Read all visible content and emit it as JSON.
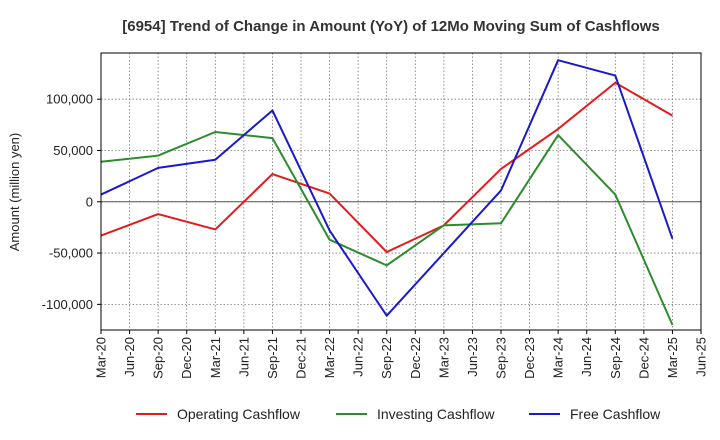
{
  "chart_data": {
    "type": "line",
    "title": "[6954]  Trend of Change in Amount (YoY) of 12Mo Moving Sum of Cashflows",
    "xlabel": "",
    "ylabel": "Amount (million yen)",
    "ylim": [
      -125000,
      145000
    ],
    "yticks": [
      -100000,
      -50000,
      0,
      50000,
      100000
    ],
    "ytick_labels": [
      "-100,000",
      "-50,000",
      "0",
      "50,000",
      "100,000"
    ],
    "categories": [
      "Mar-20",
      "Jun-20",
      "Sep-20",
      "Dec-20",
      "Mar-21",
      "Jun-21",
      "Sep-21",
      "Dec-21",
      "Mar-22",
      "Jun-22",
      "Sep-22",
      "Dec-22",
      "Mar-23",
      "Jun-23",
      "Sep-23",
      "Dec-23",
      "Mar-24",
      "Jun-24",
      "Sep-24",
      "Dec-24",
      "Mar-25",
      "Jun-25"
    ],
    "legend_position": "bottom",
    "series": [
      {
        "name": "Operating Cashflow",
        "color": "#e41a1c",
        "points": [
          [
            0,
            -33000
          ],
          [
            2,
            -12000
          ],
          [
            4,
            -27000
          ],
          [
            6,
            27000
          ],
          [
            8,
            8000
          ],
          [
            10,
            -49000
          ],
          [
            12,
            -23000
          ],
          [
            14,
            32000
          ],
          [
            16,
            71000
          ],
          [
            18,
            116000
          ],
          [
            20,
            84000
          ]
        ]
      },
      {
        "name": "Investing Cashflow",
        "color": "#2e8b2e",
        "points": [
          [
            0,
            39000
          ],
          [
            2,
            45000
          ],
          [
            4,
            68000
          ],
          [
            6,
            62000
          ],
          [
            8,
            -37000
          ],
          [
            10,
            -62000
          ],
          [
            12,
            -23000
          ],
          [
            14,
            -21000
          ],
          [
            16,
            65000
          ],
          [
            18,
            7000
          ],
          [
            20,
            -120000
          ]
        ]
      },
      {
        "name": "Free Cashflow",
        "color": "#1a1acd",
        "points": [
          [
            0,
            7000
          ],
          [
            2,
            33000
          ],
          [
            4,
            41000
          ],
          [
            6,
            89000
          ],
          [
            8,
            -28000
          ],
          [
            10,
            -111000
          ],
          [
            12,
            -50000
          ],
          [
            14,
            11000
          ],
          [
            16,
            138000
          ],
          [
            18,
            123000
          ],
          [
            20,
            -36000
          ]
        ]
      }
    ]
  }
}
